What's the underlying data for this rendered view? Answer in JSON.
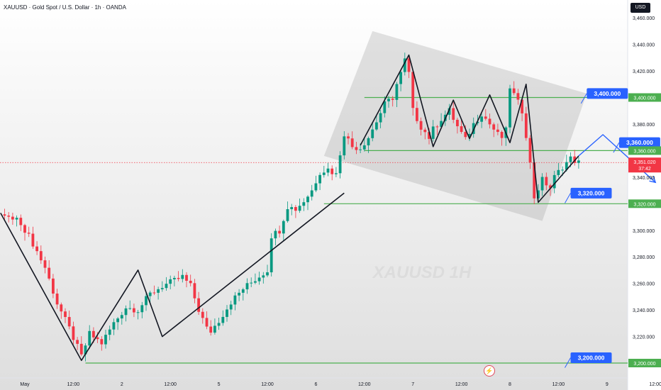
{
  "header": {
    "symbol": "XAUUSD",
    "description": "Gold Spot / U.S. Dollar",
    "interval": "1h",
    "exchange": "OANDA",
    "separator": " · "
  },
  "currency": "USD",
  "watermark": "XAUUSD 1H",
  "chart_data": {
    "type": "candlestick",
    "instrument": "XAUUSD",
    "interval": "1h",
    "ylim": [
      3190,
      3470
    ],
    "y_ticks": [
      "3,460.000",
      "3,440.000",
      "3,420.000",
      "3,400.000",
      "3,380.000",
      "3,360.000",
      "3,340.000",
      "3,320.000",
      "3,300.000",
      "3,280.000",
      "3,260.000",
      "3,240.000",
      "3,220.000",
      "3,200.000"
    ],
    "x_ticks": [
      {
        "label": "May",
        "t": 0
      },
      {
        "label": "12:00",
        "t": 12
      },
      {
        "label": "2",
        "t": 24
      },
      {
        "label": "12:00",
        "t": 36
      },
      {
        "label": "5",
        "t": 48
      },
      {
        "label": "12:00",
        "t": 60
      },
      {
        "label": "6",
        "t": 72
      },
      {
        "label": "12:00",
        "t": 84
      },
      {
        "label": "7",
        "t": 96
      },
      {
        "label": "12:00",
        "t": 108
      },
      {
        "label": "8",
        "t": 120
      },
      {
        "label": "12:00",
        "t": 132
      },
      {
        "label": "9",
        "t": 144
      },
      {
        "label": "12:00",
        "t": 156
      },
      {
        "label": "12",
        "t": 168
      }
    ],
    "close_path": [
      [
        -6,
        3312
      ],
      [
        -1,
        3306
      ],
      [
        2,
        3290
      ],
      [
        5,
        3272
      ],
      [
        8,
        3245
      ],
      [
        11,
        3226
      ],
      [
        13,
        3212
      ],
      [
        14,
        3205
      ],
      [
        16,
        3222
      ],
      [
        19,
        3215
      ],
      [
        22,
        3230
      ],
      [
        25,
        3242
      ],
      [
        28,
        3240
      ],
      [
        31,
        3252
      ],
      [
        34,
        3258
      ],
      [
        37,
        3262
      ],
      [
        39,
        3265
      ],
      [
        41,
        3258
      ],
      [
        43,
        3240
      ],
      [
        45,
        3226
      ],
      [
        46,
        3224
      ],
      [
        48,
        3232
      ],
      [
        51,
        3246
      ],
      [
        54,
        3256
      ],
      [
        57,
        3263
      ],
      [
        60,
        3270
      ],
      [
        61,
        3296
      ],
      [
        63,
        3300
      ],
      [
        65,
        3318
      ],
      [
        67,
        3316
      ],
      [
        69,
        3322
      ],
      [
        71,
        3330
      ],
      [
        73,
        3344
      ],
      [
        75,
        3346
      ],
      [
        77,
        3342
      ],
      [
        78,
        3358
      ],
      [
        79,
        3373
      ],
      [
        81,
        3363
      ],
      [
        83,
        3362
      ],
      [
        85,
        3370
      ],
      [
        87,
        3382
      ],
      [
        89,
        3395
      ],
      [
        91,
        3400
      ],
      [
        92,
        3410
      ],
      [
        93,
        3418
      ],
      [
        94,
        3428
      ],
      [
        95,
        3418
      ],
      [
        96,
        3390
      ],
      [
        98,
        3378
      ],
      [
        100,
        3370
      ],
      [
        101,
        3376
      ],
      [
        103,
        3384
      ],
      [
        105,
        3390
      ],
      [
        107,
        3378
      ],
      [
        109,
        3368
      ],
      [
        111,
        3380
      ],
      [
        113,
        3388
      ],
      [
        115,
        3380
      ],
      [
        117,
        3372
      ],
      [
        118,
        3370
      ],
      [
        119,
        3375
      ],
      [
        120,
        3408
      ],
      [
        121,
        3402
      ],
      [
        123,
        3390
      ],
      [
        124,
        3372
      ],
      [
        125,
        3350
      ],
      [
        126,
        3325
      ],
      [
        128,
        3338
      ],
      [
        130,
        3332
      ],
      [
        131,
        3340
      ],
      [
        133,
        3348
      ],
      [
        135,
        3354
      ],
      [
        137,
        3351.02
      ]
    ],
    "swing_lines": [
      [
        [
          -6,
          3313
        ],
        [
          14,
          3202
        ],
        [
          28,
          3270
        ],
        [
          34,
          3220
        ],
        [
          79,
          3328
        ]
      ],
      [
        [
          83,
          3364
        ],
        [
          95,
          3432
        ],
        [
          101,
          3363
        ],
        [
          106,
          3398
        ],
        [
          110,
          3369
        ],
        [
          115,
          3402
        ],
        [
          120,
          3366
        ],
        [
          124,
          3410
        ],
        [
          127,
          3321
        ],
        [
          137,
          3356
        ]
      ]
    ],
    "price_lines": [
      {
        "price": 3400,
        "label": "3,400.000",
        "t0": 84,
        "color": "#4caf50"
      },
      {
        "price": 3360,
        "label": "3,360.000",
        "t0": 84,
        "color": "#4caf50"
      },
      {
        "price": 3320,
        "label": "3,320.000",
        "t0": 74,
        "color": "#4caf50"
      },
      {
        "price": 3200,
        "label": "3,200.000",
        "t0": 15,
        "color": "#4caf50"
      }
    ],
    "current_price": {
      "value": 3351.02,
      "label": "3,351.020",
      "countdown": "37:42"
    },
    "callouts": [
      {
        "text": "3,400.000",
        "t": 139,
        "price": 3407
      },
      {
        "text": "3,360.000",
        "t": 147,
        "price": 3370
      },
      {
        "text": "3,320.000",
        "t": 135,
        "price": 3332
      },
      {
        "text": "3,200.000",
        "t": 135,
        "price": 3208
      }
    ],
    "projection": [
      [
        137,
        3356
      ],
      [
        143,
        3372
      ],
      [
        156,
        3336
      ]
    ],
    "target_arrow": {
      "from": [
        161,
        3368
      ],
      "to": [
        171,
        3328
      ]
    },
    "channel": [
      [
        86,
        3450
      ],
      [
        139,
        3403
      ],
      [
        128,
        3307
      ],
      [
        74,
        3356
      ]
    ],
    "colors": {
      "up": "#089981",
      "down": "#f23645",
      "line": "#131722",
      "level": "#4caf50",
      "blue": "#2962ff",
      "arrow": "#e0303e"
    }
  }
}
